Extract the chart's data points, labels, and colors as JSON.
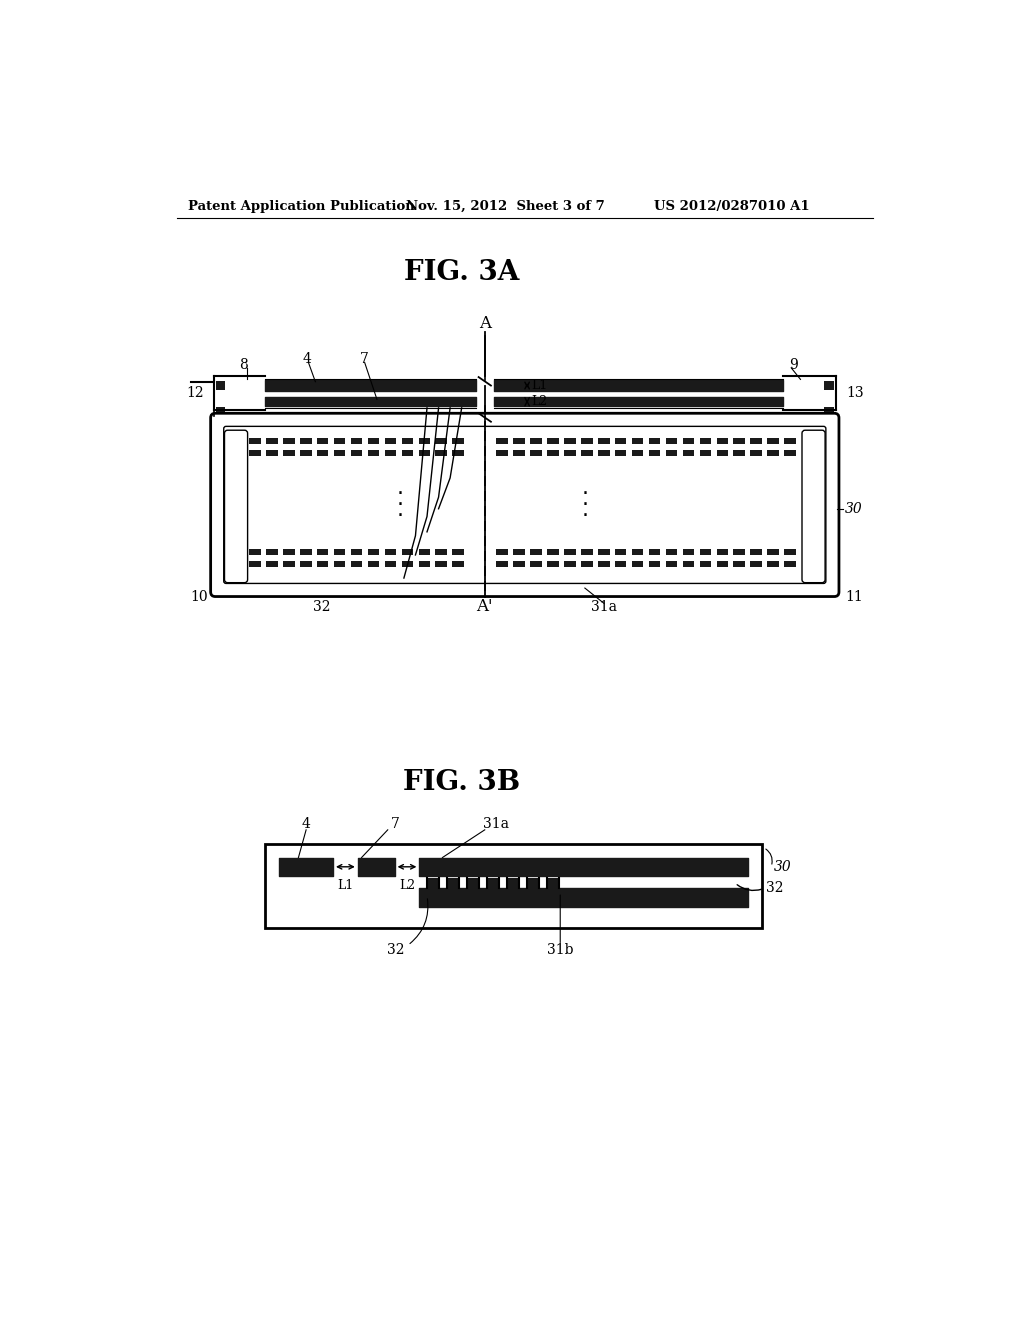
{
  "header_left": "Patent Application Publication",
  "header_mid": "Nov. 15, 2012  Sheet 3 of 7",
  "header_right": "US 2012/0287010 A1",
  "fig3a_title": "FIG. 3A",
  "fig3b_title": "FIG. 3B",
  "bg_color": "#ffffff",
  "line_color": "#000000",
  "dark_color": "#1a1a1a",
  "gray_color": "#888888"
}
